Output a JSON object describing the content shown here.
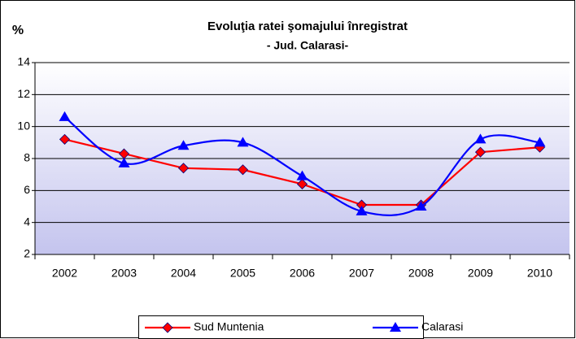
{
  "chart_data": {
    "type": "line",
    "title": "Evoluţia ratei şomajului înregistrat",
    "subtitle": "- Jud. Calarasi-",
    "y_label": "%",
    "categories": [
      "2002",
      "2003",
      "2004",
      "2005",
      "2006",
      "2007",
      "2008",
      "2009",
      "2010"
    ],
    "series": [
      {
        "name": "Sud Muntenia",
        "color": "#ff0000",
        "values": [
          9.2,
          8.3,
          7.4,
          7.3,
          6.4,
          5.1,
          5.1,
          8.4,
          8.7
        ]
      },
      {
        "name": "Calarasi",
        "color": "#0000ff",
        "values": [
          10.6,
          7.7,
          8.8,
          9.0,
          6.9,
          4.7,
          5.0,
          9.2,
          9.0
        ]
      }
    ],
    "ylim": [
      2,
      14
    ],
    "yticks": [
      2,
      4,
      6,
      8,
      10,
      12,
      14
    ],
    "grid": true,
    "legend": "bottom"
  }
}
